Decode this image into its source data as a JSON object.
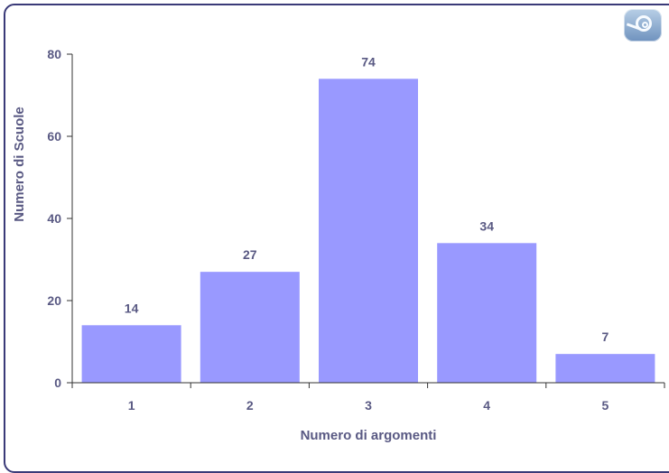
{
  "chart_data": {
    "type": "bar",
    "categories": [
      "1",
      "2",
      "3",
      "4",
      "5"
    ],
    "values": [
      14,
      27,
      74,
      34,
      7
    ],
    "xlabel": "Numero di argomenti",
    "ylabel": "Numero di Scuole",
    "ylim": [
      0,
      80
    ],
    "yticks": [
      0,
      20,
      40,
      60,
      80
    ],
    "grid": false,
    "colors": {
      "bar": "#9999ff",
      "axis": "#333333",
      "text": "#595983",
      "frame": "#3a3a78"
    }
  },
  "logo": {
    "icon": "concentric-circle-logo-icon"
  }
}
